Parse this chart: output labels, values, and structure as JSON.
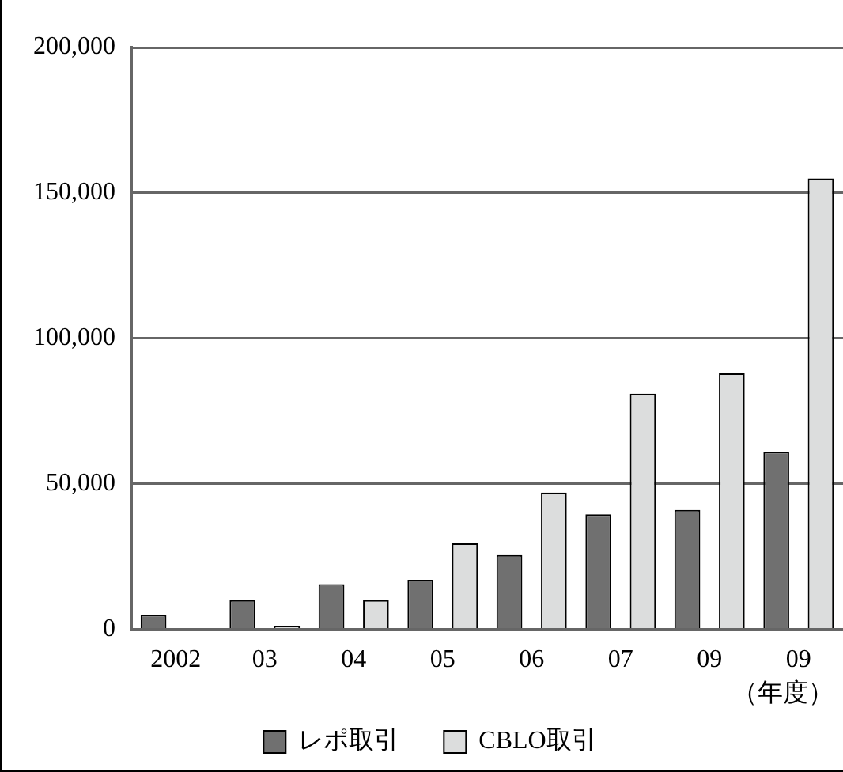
{
  "chart_data": {
    "type": "bar",
    "categories": [
      "2002",
      "03",
      "04",
      "05",
      "06",
      "07",
      "09",
      "09"
    ],
    "series": [
      {
        "name": "レポ取引",
        "color": "#707070",
        "values": [
          5000,
          10000,
          15500,
          17000,
          25500,
          39500,
          41000,
          61000
        ]
      },
      {
        "name": "CBLO取引",
        "color": "#dcdddd",
        "values": [
          0,
          1000,
          10000,
          29500,
          47000,
          81000,
          88000,
          155000
        ]
      }
    ],
    "ylim": [
      0,
      200000
    ],
    "yticks": [
      {
        "value": 0,
        "label": "0"
      },
      {
        "value": 50000,
        "label": "50,000"
      },
      {
        "value": 100000,
        "label": "100,000"
      },
      {
        "value": 150000,
        "label": "150,000"
      },
      {
        "value": 200000,
        "label": "200,000"
      }
    ],
    "grid": "y",
    "legend": "bottom",
    "annotations": [
      "（年度）"
    ]
  }
}
